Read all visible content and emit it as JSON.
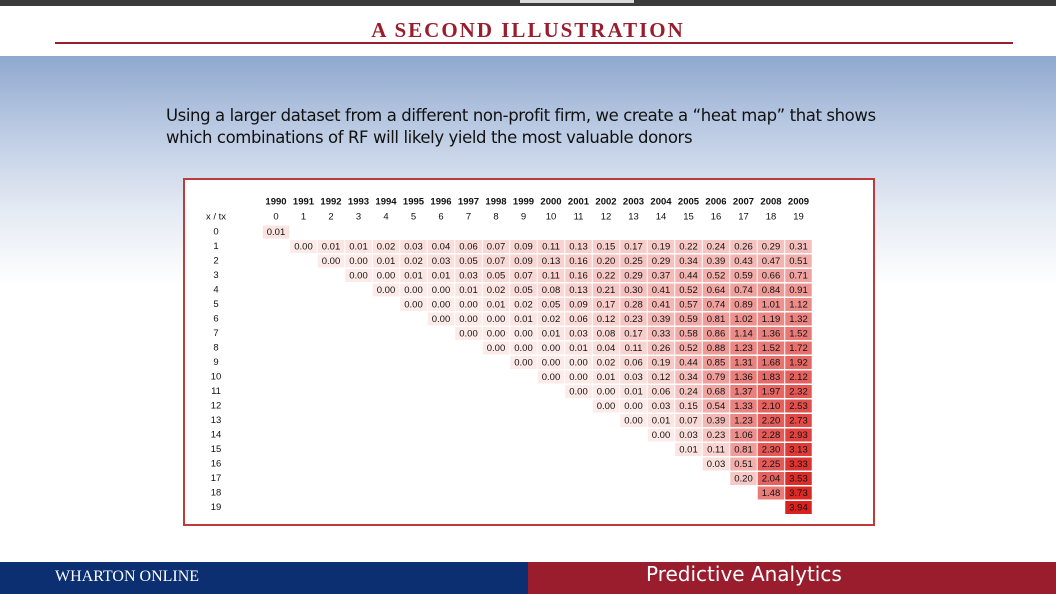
{
  "slide": {
    "title": "A SECOND ILLUSTRATION",
    "intro": "Using a larger dataset from a different non-profit firm, we create a “heat map” that shows which combinations of RF will likely yield the most valuable donors"
  },
  "footer": {
    "brand": "WHARTON ONLINE",
    "course": "Predictive Analytics"
  },
  "colors": {
    "title_red": "#9a1d2e",
    "footer_navy": "#0b2f70",
    "footer_red": "#9a1d2e",
    "box_border": "#c0393b",
    "heat_low": "#fcebe8",
    "heat_high": "#d9211e"
  },
  "chart_data": {
    "type": "heatmap",
    "row_header_label": "x / tx",
    "years": [
      "1990",
      "1991",
      "1992",
      "1993",
      "1994",
      "1995",
      "1996",
      "1997",
      "1998",
      "1999",
      "2000",
      "2001",
      "2002",
      "2003",
      "2004",
      "2005",
      "2006",
      "2007",
      "2008",
      "2009"
    ],
    "tx": [
      "0",
      "1",
      "2",
      "3",
      "4",
      "5",
      "6",
      "7",
      "8",
      "9",
      "10",
      "11",
      "12",
      "13",
      "14",
      "15",
      "16",
      "17",
      "18",
      "19"
    ],
    "x": [
      "0",
      "1",
      "2",
      "3",
      "4",
      "5",
      "6",
      "7",
      "8",
      "9",
      "10",
      "11",
      "12",
      "13",
      "14",
      "15",
      "16",
      "17",
      "18",
      "19"
    ],
    "rows": [
      [
        "0.01"
      ],
      [
        "0.00",
        "0.01",
        "0.01",
        "0.02",
        "0.03",
        "0.04",
        "0.06",
        "0.07",
        "0.09",
        "0.11",
        "0.13",
        "0.15",
        "0.17",
        "0.19",
        "0.22",
        "0.24",
        "0.26",
        "0.29",
        "0.31"
      ],
      [
        "0.00",
        "0.00",
        "0.01",
        "0.02",
        "0.03",
        "0.05",
        "0.07",
        "0.09",
        "0.13",
        "0.16",
        "0.20",
        "0.25",
        "0.29",
        "0.34",
        "0.39",
        "0.43",
        "0.47",
        "0.51"
      ],
      [
        "0.00",
        "0.00",
        "0.01",
        "0.01",
        "0.03",
        "0.05",
        "0.07",
        "0.11",
        "0.16",
        "0.22",
        "0.29",
        "0.37",
        "0.44",
        "0.52",
        "0.59",
        "0.66",
        "0.71"
      ],
      [
        "0.00",
        "0.00",
        "0.00",
        "0.01",
        "0.02",
        "0.05",
        "0.08",
        "0.13",
        "0.21",
        "0.30",
        "0.41",
        "0.52",
        "0.64",
        "0.74",
        "0.84",
        "0.91"
      ],
      [
        "0.00",
        "0.00",
        "0.00",
        "0.01",
        "0.02",
        "0.05",
        "0.09",
        "0.17",
        "0.28",
        "0.41",
        "0.57",
        "0.74",
        "0.89",
        "1.01",
        "1.12"
      ],
      [
        "0.00",
        "0.00",
        "0.00",
        "0.01",
        "0.02",
        "0.06",
        "0.12",
        "0.23",
        "0.39",
        "0.59",
        "0.81",
        "1.02",
        "1.19",
        "1.32"
      ],
      [
        "0.00",
        "0.00",
        "0.00",
        "0.01",
        "0.03",
        "0.08",
        "0.17",
        "0.33",
        "0.58",
        "0.86",
        "1.14",
        "1.36",
        "1.52"
      ],
      [
        "0.00",
        "0.00",
        "0.00",
        "0.01",
        "0.04",
        "0.11",
        "0.26",
        "0.52",
        "0.88",
        "1.23",
        "1.52",
        "1.72"
      ],
      [
        "0.00",
        "0.00",
        "0.00",
        "0.02",
        "0.06",
        "0.19",
        "0.44",
        "0.85",
        "1.31",
        "1.68",
        "1.92"
      ],
      [
        "0.00",
        "0.00",
        "0.01",
        "0.03",
        "0.12",
        "0.34",
        "0.79",
        "1.36",
        "1.83",
        "2.12"
      ],
      [
        "0.00",
        "0.00",
        "0.01",
        "0.06",
        "0.24",
        "0.68",
        "1.37",
        "1.97",
        "2.32"
      ],
      [
        "0.00",
        "0.00",
        "0.03",
        "0.15",
        "0.54",
        "1.33",
        "2.10",
        "2.53"
      ],
      [
        "0.00",
        "0.01",
        "0.07",
        "0.39",
        "1.23",
        "2.20",
        "2.73"
      ],
      [
        "0.00",
        "0.03",
        "0.23",
        "1.06",
        "2.28",
        "2.93"
      ],
      [
        "0.01",
        "0.11",
        "0.81",
        "2.30",
        "3.13"
      ],
      [
        "0.03",
        "0.51",
        "2.25",
        "3.33"
      ],
      [
        "0.20",
        "2.04",
        "3.53"
      ],
      [
        "1.48",
        "3.73"
      ],
      [
        "3.94"
      ]
    ],
    "value_range": [
      0,
      3.94
    ]
  }
}
